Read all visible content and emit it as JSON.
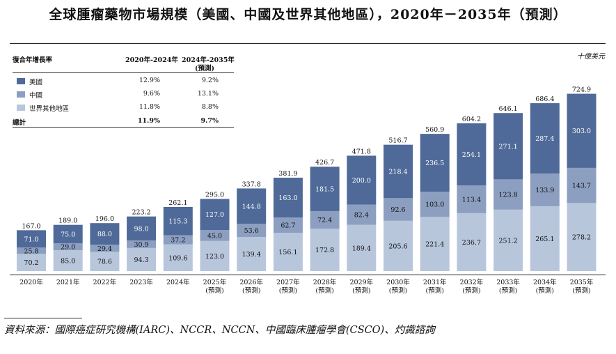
{
  "title": "全球腫瘤藥物市場規模（美國、中國及世界其他地區），2020年－2035年（預測）",
  "unit": "十億美元",
  "source": "資料來源：國際癌症研究機構(IARC)、NCCR、NCCN、中國臨床腫瘤學會(CSCO)、灼識諮詢",
  "cagr_table": {
    "header": {
      "label": "復合年增長率",
      "col1": "2020年-2024年",
      "col2": "2024年-2035年",
      "col2b": "(預測)"
    },
    "rows": [
      {
        "label": "美國",
        "c1": "12.9%",
        "c2": "9.2%"
      },
      {
        "label": "中國",
        "c1": "9.6%",
        "c2": "13.1%"
      },
      {
        "label": "世界其他地區",
        "c1": "11.8%",
        "c2": "8.8%"
      },
      {
        "label": "總計",
        "c1": "11.9%",
        "c2": "9.7%"
      }
    ]
  },
  "colors": {
    "us": "#4f6a98",
    "china": "#8c9fc0",
    "row": "#b8c6dc",
    "axis": "#555555"
  },
  "chart_data": {
    "type": "bar",
    "stacked": true,
    "title": "全球腫瘤藥物市場規模（美國、中國及世界其他地區），2020年－2035年（預測）",
    "ylabel": "十億美元",
    "categories": [
      "2020年",
      "2021年",
      "2022年",
      "2023年",
      "2024年",
      "2025年",
      "2026年",
      "2027年",
      "2028年",
      "2029年",
      "2030年",
      "2031年",
      "2032年",
      "2033年",
      "2034年",
      "2035年"
    ],
    "category_notes": [
      "",
      "",
      "",
      "",
      "",
      "(預測)",
      "(預測)",
      "(預測)",
      "(預測)",
      "(預測)",
      "(預測)",
      "(預測)",
      "(預測)",
      "(預測)",
      "(預測)",
      "(預測)"
    ],
    "series": [
      {
        "name": "世界其他地區",
        "values": [
          70.2,
          85.0,
          78.6,
          94.3,
          109.6,
          123.0,
          139.4,
          156.1,
          172.8,
          189.4,
          205.6,
          221.4,
          236.7,
          251.2,
          265.1,
          278.2
        ]
      },
      {
        "name": "中國",
        "values": [
          25.8,
          29.0,
          29.4,
          30.9,
          37.2,
          45.0,
          53.6,
          62.7,
          72.4,
          82.4,
          92.6,
          103.0,
          113.4,
          123.8,
          133.9,
          143.7
        ]
      },
      {
        "name": "美國",
        "values": [
          71.0,
          75.0,
          88.0,
          98.0,
          115.3,
          127.0,
          144.8,
          163.0,
          181.5,
          200.0,
          218.4,
          236.5,
          254.1,
          271.1,
          287.4,
          303.0
        ]
      }
    ],
    "totals": [
      167.0,
      189.0,
      196.0,
      223.2,
      262.1,
      295.0,
      337.8,
      381.9,
      426.7,
      471.8,
      516.7,
      560.9,
      604.2,
      646.1,
      686.4,
      724.9
    ],
    "ylim": [
      0,
      780
    ],
    "legend": "top-left table"
  }
}
